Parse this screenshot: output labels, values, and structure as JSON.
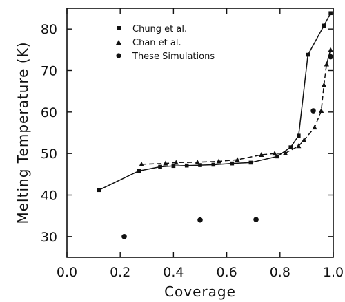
{
  "chart_data": {
    "type": "scatter",
    "title": "",
    "xlabel": "Coverage",
    "ylabel": "Melting Temperature (K)",
    "xlim": [
      0.0,
      1.0
    ],
    "ylim": [
      25,
      85
    ],
    "xticks": [
      0.0,
      0.2,
      0.4,
      0.6,
      0.8,
      1.0
    ],
    "yticks": [
      30,
      40,
      50,
      60,
      70,
      80
    ],
    "xtick_labels": [
      "0.0",
      "0.2",
      "0.4",
      "0.6",
      "0.8",
      "1.0"
    ],
    "ytick_labels": [
      "30",
      "40",
      "50",
      "60",
      "70",
      "80"
    ],
    "grid": false,
    "legend_position": "top-center",
    "series": [
      {
        "name": "Chung et al.",
        "marker": "square",
        "line": "solid",
        "x": [
          0.12,
          0.27,
          0.35,
          0.4,
          0.45,
          0.5,
          0.55,
          0.62,
          0.69,
          0.79,
          0.84,
          0.87,
          0.905,
          0.965,
          0.99
        ],
        "y": [
          41.2,
          45.8,
          46.8,
          47.0,
          47.1,
          47.2,
          47.3,
          47.6,
          47.8,
          49.3,
          51.5,
          54.3,
          73.8,
          80.8,
          83.8
        ]
      },
      {
        "name": "Chan et al.",
        "marker": "triangle",
        "line": "dashed",
        "x": [
          0.28,
          0.37,
          0.41,
          0.49,
          0.57,
          0.64,
          0.73,
          0.78,
          0.82,
          0.87,
          0.89,
          0.93,
          0.955,
          0.965,
          0.975,
          0.99
        ],
        "y": [
          47.4,
          47.6,
          47.8,
          47.9,
          48.1,
          48.5,
          49.7,
          50.0,
          50.1,
          51.8,
          53.2,
          56.3,
          60.3,
          66.5,
          71.5,
          75.0
        ]
      },
      {
        "name": "These Simulations",
        "marker": "circle",
        "line": "none",
        "x": [
          0.215,
          0.5,
          0.71,
          0.925,
          0.99
        ],
        "y": [
          30.0,
          34.0,
          34.1,
          60.3,
          73.3
        ]
      }
    ]
  }
}
